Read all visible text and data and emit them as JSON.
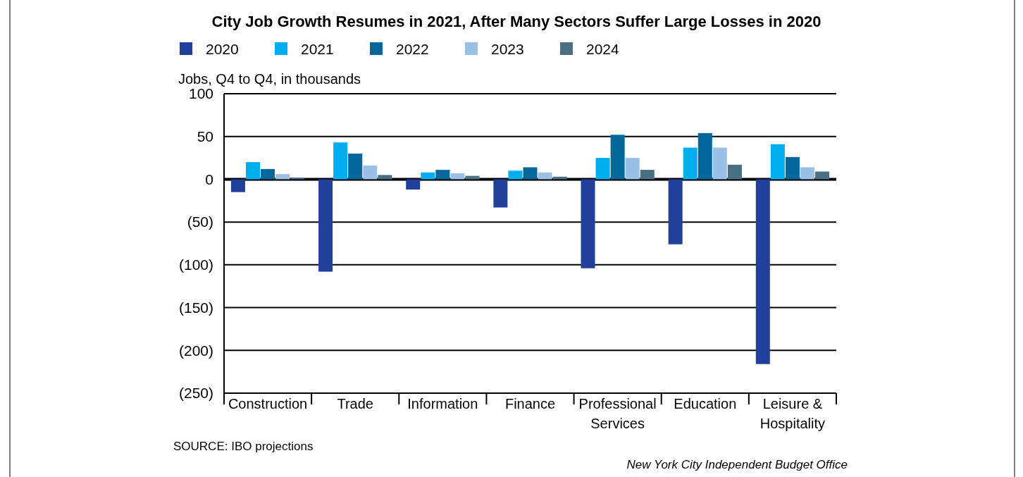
{
  "chart_data": {
    "type": "bar",
    "title": "City Job Growth Resumes in 2021, After Many Sectors Suffer Large Losses in 2020",
    "ylabel": "Jobs, Q4 to Q4, in thousands",
    "categories": [
      "Construction",
      "Trade",
      "Information",
      "Finance",
      "Professional Services",
      "Education",
      "Leisure & Hospitality"
    ],
    "series": [
      {
        "name": "2020",
        "color": "#21409a",
        "values": [
          -15,
          -108,
          -12,
          -33,
          -104,
          -76,
          -216
        ]
      },
      {
        "name": "2021",
        "color": "#00aeef",
        "values": [
          20,
          43,
          8,
          10,
          25,
          37,
          41
        ]
      },
      {
        "name": "2022",
        "color": "#02689b",
        "values": [
          12,
          30,
          11,
          14,
          52,
          54,
          26
        ]
      },
      {
        "name": "2023",
        "color": "#9bc0e6",
        "values": [
          6,
          16,
          7,
          8,
          25,
          37,
          14
        ]
      },
      {
        "name": "2024",
        "color": "#4a6f82",
        "values": [
          2,
          5,
          4,
          3,
          11,
          17,
          9
        ]
      }
    ],
    "ylim": [
      -250,
      100
    ],
    "yticks": [
      {
        "value": -250,
        "label": "(250)"
      },
      {
        "value": -200,
        "label": "(200)"
      },
      {
        "value": -150,
        "label": "(150)"
      },
      {
        "value": -100,
        "label": "(100)"
      },
      {
        "value": -50,
        "label": "(50)"
      },
      0,
      50,
      100
    ],
    "grid": "y",
    "legend": "top left",
    "annotations": [
      "SOURCE: IBO projections",
      "New York City Independent Budget Office"
    ]
  }
}
